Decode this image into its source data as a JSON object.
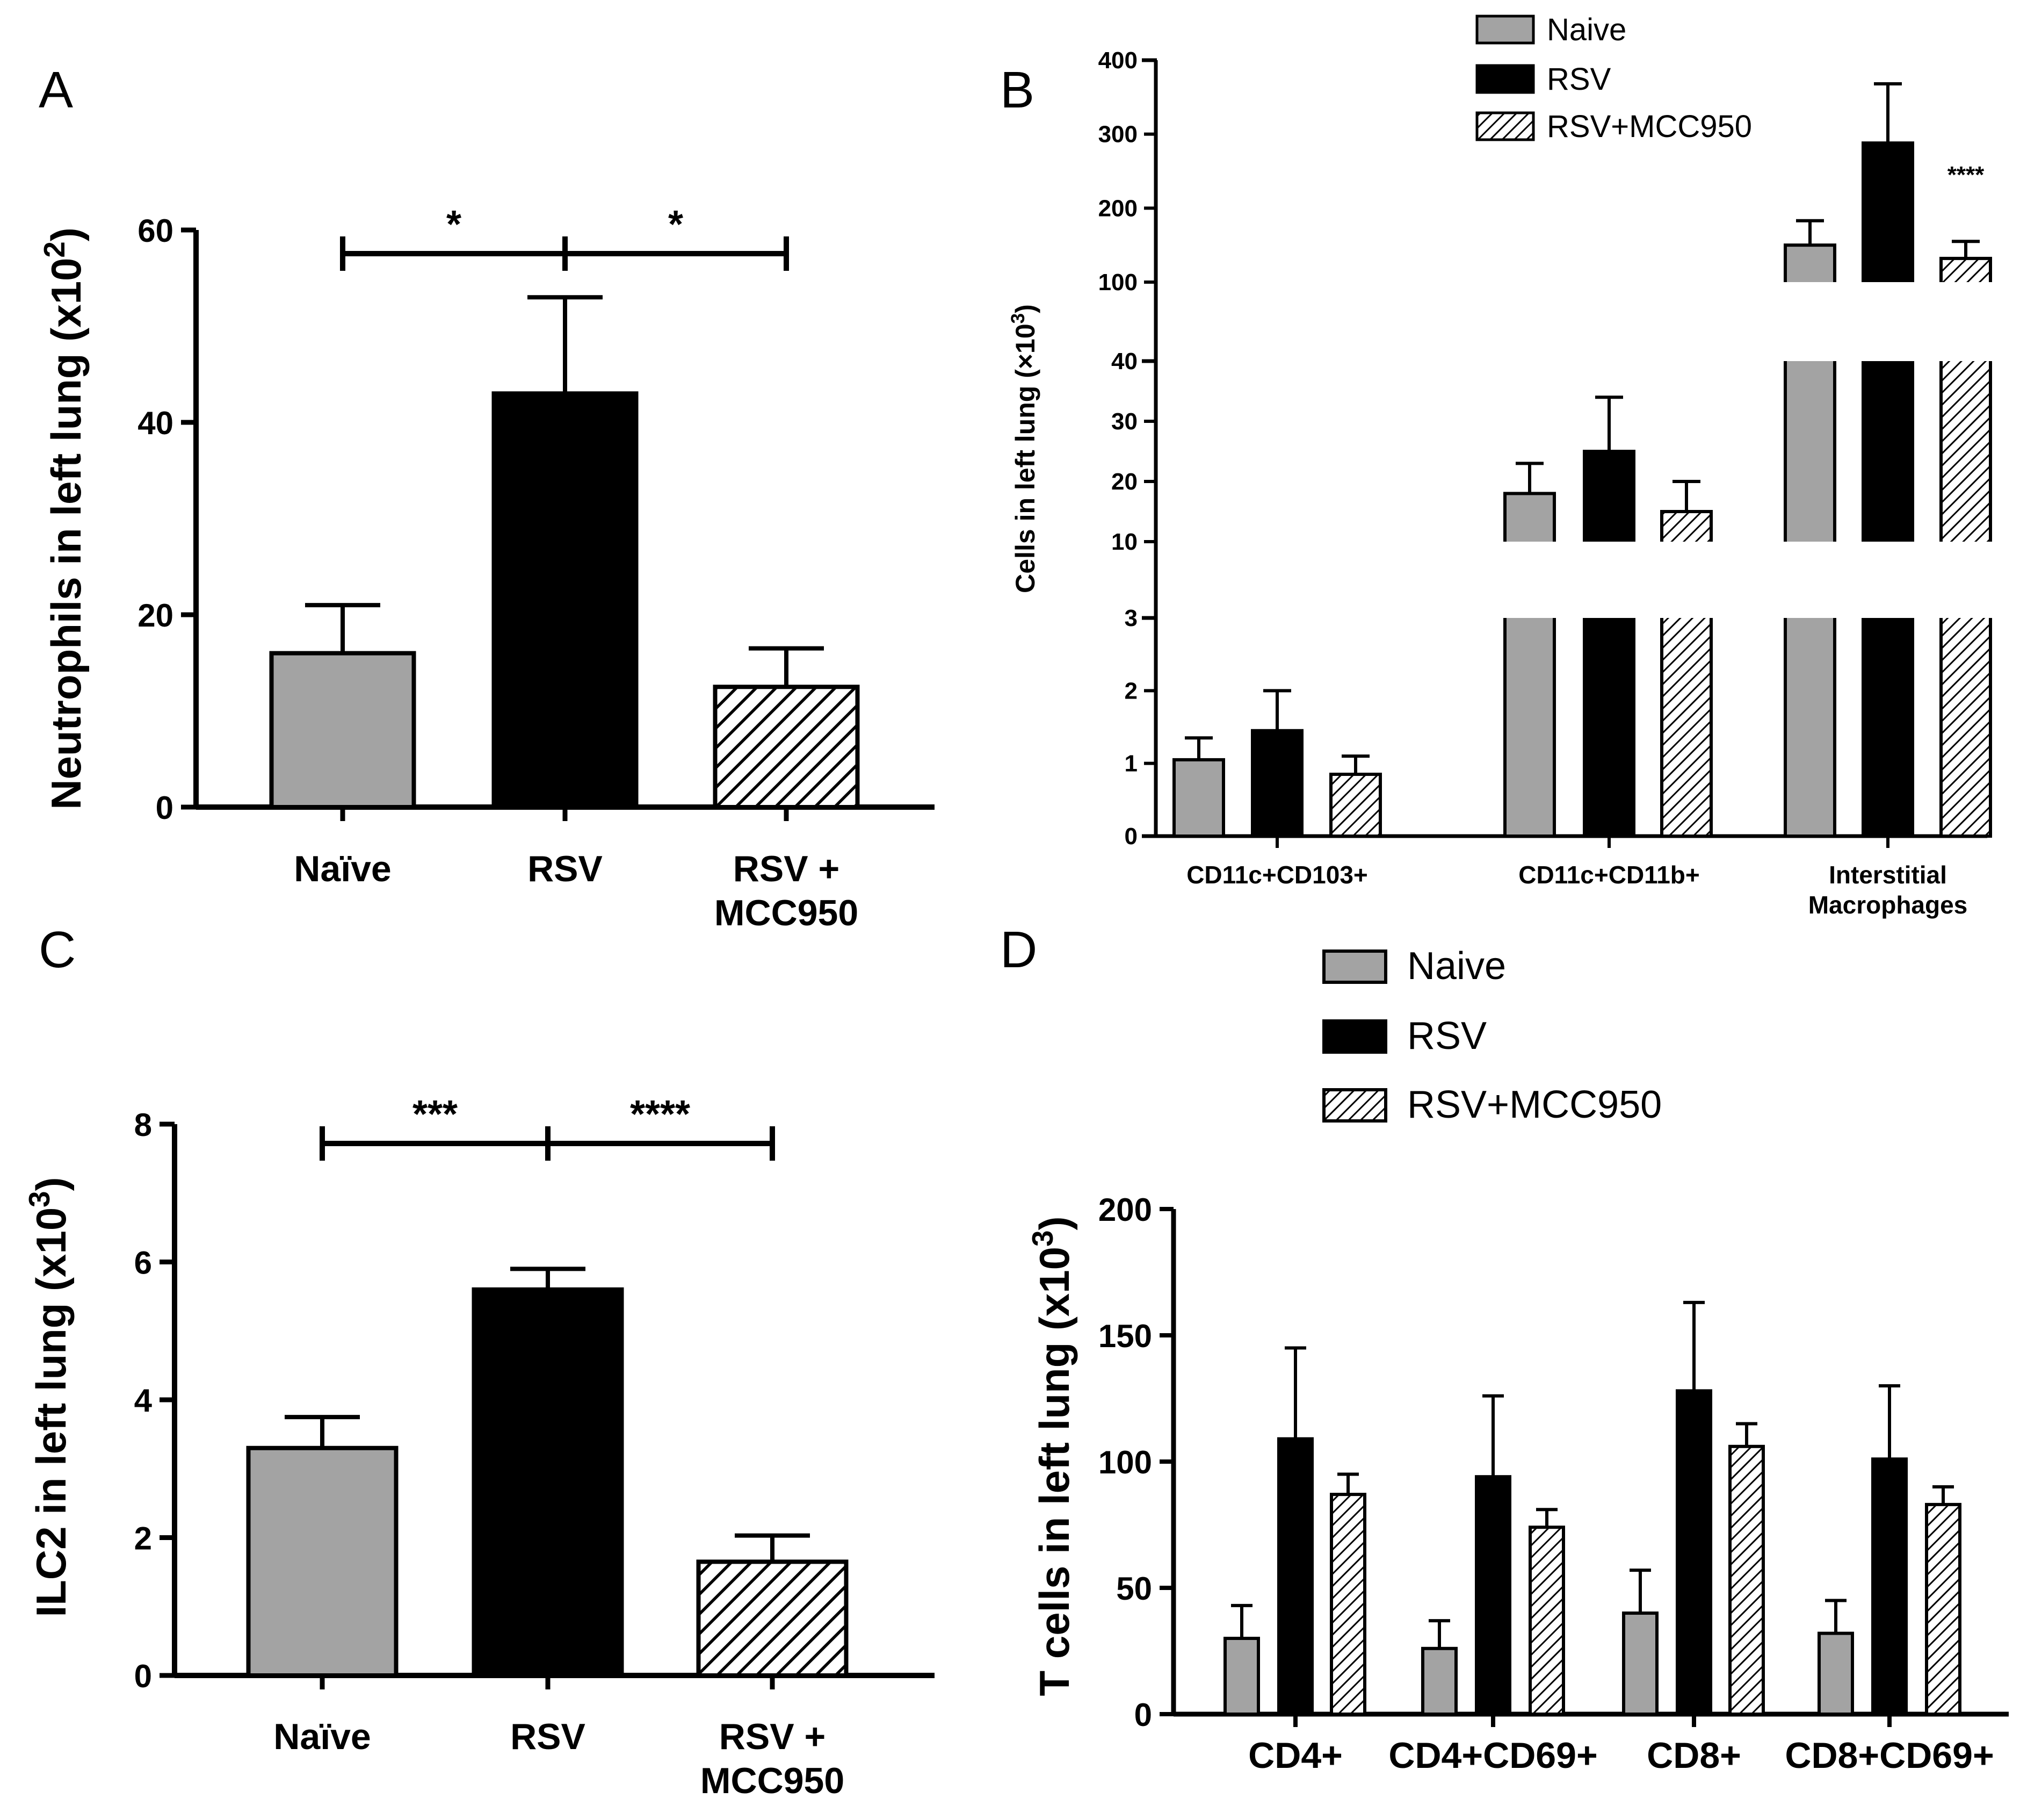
{
  "colors": {
    "naive": "#a3a3a3",
    "rsv": "#000000",
    "hatch": "#000000"
  },
  "chart_data": [
    {
      "panel": "A",
      "type": "bar",
      "categories": [
        "Naïve",
        "RSV",
        "RSV + MCC950"
      ],
      "category_lines": [
        [
          "Naïve"
        ],
        [
          "RSV"
        ],
        [
          "RSV +",
          "MCC950"
        ]
      ],
      "values": [
        16,
        43,
        12.5
      ],
      "errors": [
        5,
        10,
        4
      ],
      "fills": [
        "gray",
        "black",
        "hatch"
      ],
      "ylabel": "Neutrophils in left lung (x10",
      "ylabel_sup": "2",
      "ylabel_end": ")",
      "ylim": [
        0,
        60
      ],
      "yticks": [
        "0",
        "20",
        "40",
        "60"
      ],
      "significance": [
        {
          "from": 0,
          "to": 1,
          "label": "*"
        },
        {
          "from": 1,
          "to": 2,
          "label": "*"
        }
      ]
    },
    {
      "panel": "B",
      "type": "bar",
      "categories": [
        "CD11c+CD103+",
        "CD11c+CD11b+",
        "Interstitial Macrophages"
      ],
      "category_lines": [
        [
          "CD11c+CD103+"
        ],
        [
          "CD11c+CD11b+"
        ],
        [
          "Interstitial",
          "Macrophages"
        ]
      ],
      "series": [
        {
          "name": "Naive",
          "values": [
            1.05,
            18,
            150
          ],
          "errors": [
            0.3,
            5,
            33
          ]
        },
        {
          "name": "RSV",
          "values": [
            1.45,
            25,
            288
          ],
          "errors": [
            0.55,
            9,
            80
          ]
        },
        {
          "name": "RSV+MCC950",
          "values": [
            0.85,
            15,
            132
          ],
          "errors": [
            0.25,
            5,
            23
          ]
        }
      ],
      "ylabel": "Cells in left lung  (×10",
      "ylabel_sup": "3",
      "ylabel_end": ")",
      "broken_axis": [
        [
          0,
          3
        ],
        [
          10,
          40
        ],
        [
          100,
          400
        ]
      ],
      "yticks": [
        [
          "0",
          "1",
          "2",
          "3"
        ],
        [
          "10",
          "20",
          "30",
          "40"
        ],
        [
          "100",
          "200",
          "300",
          "400"
        ]
      ],
      "annotation": "****",
      "legend": "top-right"
    },
    {
      "panel": "C",
      "type": "bar",
      "categories": [
        "Naïve",
        "RSV",
        "RSV + MCC950"
      ],
      "category_lines": [
        [
          "Naïve"
        ],
        [
          "RSV"
        ],
        [
          "RSV +",
          "MCC950"
        ]
      ],
      "values": [
        3.3,
        5.6,
        1.65
      ],
      "errors": [
        0.45,
        0.3,
        0.38
      ],
      "fills": [
        "gray",
        "black",
        "hatch"
      ],
      "ylabel": "ILC2 in  left lung (x10",
      "ylabel_sup": "3",
      "ylabel_end": ")",
      "ylim": [
        0,
        8
      ],
      "yticks": [
        "0",
        "2",
        "4",
        "6",
        "8"
      ],
      "significance": [
        {
          "from": 0,
          "to": 1,
          "label": "***"
        },
        {
          "from": 1,
          "to": 2,
          "label": "****"
        }
      ]
    },
    {
      "panel": "D",
      "type": "bar",
      "categories": [
        "CD4+",
        "CD4+CD69+",
        "CD8+",
        "CD8+CD69+"
      ],
      "series": [
        {
          "name": "Naive",
          "values": [
            30,
            26,
            40,
            32
          ],
          "errors": [
            13,
            11,
            17,
            13
          ]
        },
        {
          "name": "RSV",
          "values": [
            109,
            94,
            128,
            101
          ],
          "errors": [
            36,
            32,
            35,
            29
          ]
        },
        {
          "name": "RSV+MCC950",
          "values": [
            87,
            74,
            106,
            83
          ],
          "errors": [
            8,
            7,
            9,
            7
          ]
        }
      ],
      "ylabel": "T cells in  left lung (x10",
      "ylabel_sup": "3",
      "ylabel_end": ")",
      "ylim": [
        0,
        200
      ],
      "yticks": [
        "0",
        "50",
        "100",
        "150",
        "200"
      ],
      "legend": "top"
    }
  ]
}
